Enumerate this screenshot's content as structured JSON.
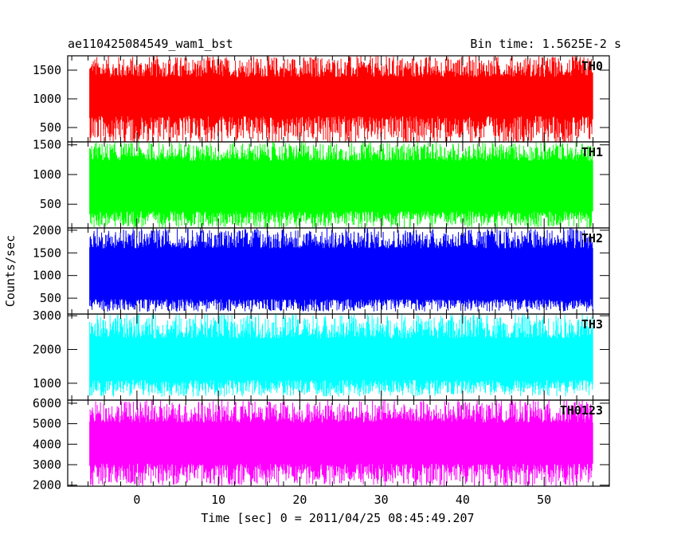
{
  "header": {
    "title": "ae110425084549_wam1_bst",
    "bin_time": "Bin time: 1.5625E-2 s"
  },
  "chart_data": {
    "type": "line",
    "ylabel": "Counts/sec",
    "xlabel": "Time [sec] 0 = 2011/04/25 08:45:49.207",
    "xlim": [
      -8.5,
      58
    ],
    "data_x_range": [
      -5.8,
      56
    ],
    "x_ticks": [
      0,
      10,
      20,
      30,
      40,
      50
    ],
    "panels": [
      {
        "name": "TH0",
        "color": "#ff0000",
        "ylim": [
          250,
          1750
        ],
        "y_ticks": [
          500,
          1000,
          1500
        ],
        "band": [
          700,
          1380
        ],
        "extreme": [
          200,
          1750
        ]
      },
      {
        "name": "TH1",
        "color": "#00ff00",
        "ylim": [
          100,
          1550
        ],
        "y_ticks": [
          500,
          1000,
          1500
        ],
        "band": [
          380,
          1230
        ],
        "extreme": [
          100,
          1550
        ]
      },
      {
        "name": "TH2",
        "color": "#0000ff",
        "ylim": [
          150,
          2050
        ],
        "y_ticks": [
          500,
          1000,
          1500,
          2000
        ],
        "band": [
          480,
          1600
        ],
        "extreme": [
          200,
          2050
        ]
      },
      {
        "name": "TH3",
        "color": "#00ffff",
        "ylim": [
          500,
          3050
        ],
        "y_ticks": [
          1000,
          2000,
          3000
        ],
        "band": [
          1100,
          2330
        ],
        "extreme": [
          600,
          3050
        ]
      },
      {
        "name": "TH0123",
        "color": "#ff00ff",
        "ylim": [
          1950,
          6150
        ],
        "y_ticks": [
          2000,
          3000,
          4000,
          5000,
          6000
        ],
        "band": [
          3050,
          5050
        ],
        "extreme": [
          1950,
          6150
        ]
      }
    ]
  }
}
